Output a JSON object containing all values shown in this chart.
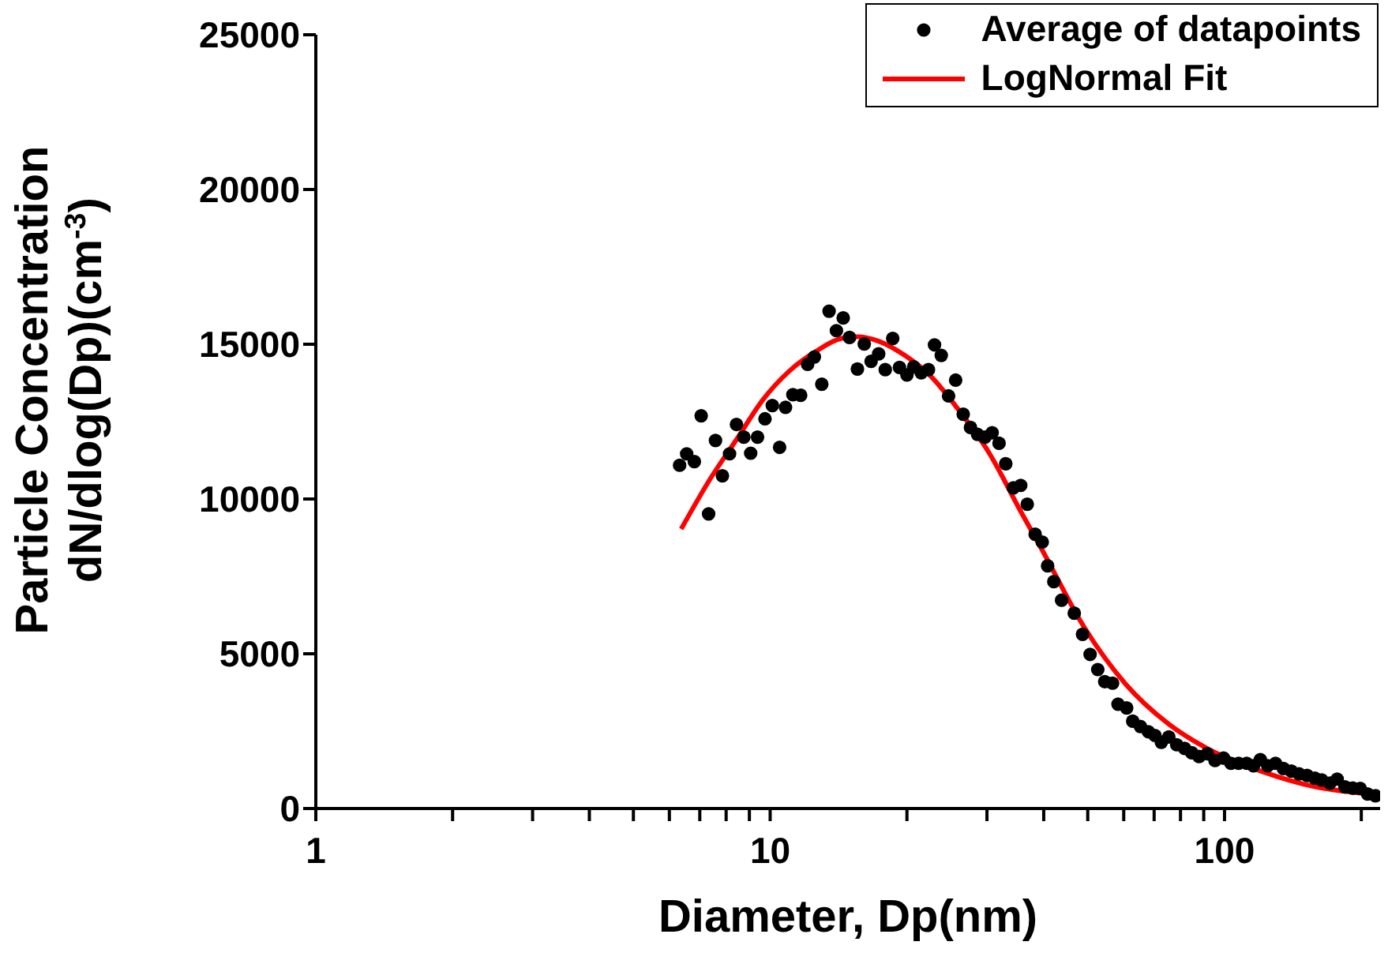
{
  "chart_data": {
    "type": "scatter",
    "xlabel": "Diameter, Dp(nm)",
    "ylabel": "Particle Concentration\ndN/dlog(Dp)(cm$^{-3}$)",
    "log": "x",
    "xlim": [
      1,
      220
    ],
    "xticks": [
      1,
      {
        "value": 2,
        "label": null
      },
      {
        "value": 3,
        "label": null
      },
      {
        "value": 4,
        "label": null
      },
      {
        "value": 5,
        "label": null
      },
      {
        "value": 6,
        "label": null
      },
      {
        "value": 7,
        "label": null
      },
      {
        "value": 8,
        "label": null
      },
      {
        "value": 9,
        "label": null
      },
      10,
      {
        "value": 20,
        "label": null
      },
      {
        "value": 30,
        "label": null
      },
      {
        "value": 40,
        "label": null
      },
      {
        "value": 50,
        "label": null
      },
      {
        "value": 60,
        "label": null
      },
      {
        "value": 70,
        "label": null
      },
      {
        "value": 80,
        "label": null
      },
      {
        "value": 90,
        "label": null
      },
      100,
      {
        "value": 200,
        "label": null
      }
    ],
    "ylim": [
      0,
      25000
    ],
    "yticks": [
      0,
      5000,
      10000,
      15000,
      20000,
      25000
    ],
    "grid": false,
    "legend": "top right",
    "marker": "circle",
    "series": [
      {
        "name": "Average of datapoints",
        "color": "#000000",
        "x": [
          6.32,
          6.55,
          6.81,
          7.05,
          7.32,
          7.58,
          7.85,
          8.14,
          8.43,
          8.75,
          9.06,
          9.38,
          9.74,
          10.11,
          10.49,
          10.81,
          11.22,
          11.67,
          12.09,
          12.51,
          12.99,
          13.48,
          13.99,
          14.48,
          14.95,
          15.56,
          16.11,
          16.68,
          17.33,
          17.92,
          18.61,
          19.26,
          20.0,
          20.7,
          21.5,
          22.3,
          23.0,
          23.8,
          24.7,
          25.6,
          26.6,
          27.6,
          28.6,
          29.7,
          30.8,
          31.9,
          33.0,
          34.3,
          35.6,
          36.8,
          38.3,
          39.7,
          40.8,
          42.1,
          43.8,
          46.7,
          48.7,
          50.6,
          52.6,
          54.5,
          56.7,
          58.3,
          60.9,
          62.8,
          65.3,
          68.0,
          70.3,
          72.6,
          75.4,
          78.5,
          81.7,
          84.7,
          87.9,
          91.6,
          95.3,
          99.5,
          103.3,
          107.4,
          111.9,
          115.8,
          119.9,
          124.5,
          129.5,
          134.8,
          140.3,
          145.9,
          152.0,
          158.1,
          163.7,
          170.6,
          177.0,
          184.1,
          191.5,
          198.9,
          206.5,
          214.9
        ],
        "values": [
          11090,
          11460,
          11210,
          12690,
          9520,
          11890,
          10750,
          11460,
          12410,
          12000,
          11480,
          12000,
          12590,
          13020,
          11670,
          12960,
          13370,
          13350,
          14350,
          14590,
          13710,
          16070,
          15440,
          15850,
          15220,
          14200,
          15010,
          14450,
          14690,
          14180,
          15190,
          14250,
          14010,
          14270,
          14080,
          14180,
          14980,
          14640,
          13330,
          13840,
          12740,
          12310,
          12090,
          12000,
          12140,
          11800,
          11140,
          10360,
          10440,
          9830,
          8860,
          8610,
          7840,
          7330,
          6730,
          6310,
          5630,
          4980,
          4490,
          4100,
          4050,
          3370,
          3250,
          2820,
          2650,
          2480,
          2360,
          2140,
          2310,
          2060,
          1940,
          1800,
          1680,
          1770,
          1550,
          1630,
          1460,
          1460,
          1460,
          1380,
          1580,
          1380,
          1460,
          1290,
          1210,
          1120,
          1070,
          980,
          920,
          820,
          950,
          700,
          660,
          650,
          470,
          410
        ]
      },
      {
        "name": "LogNormal Fit",
        "type": "line",
        "color": "#ff0000",
        "marker": "none",
        "line_style": "solid",
        "x": [
          6.37,
          7.38,
          8.43,
          9.63,
          11.01,
          12.58,
          14.36,
          15.56,
          17.32,
          19.78,
          22.6,
          25.8,
          30.3,
          35.6,
          39.7,
          49.0,
          60.6,
          75.2,
          93.0,
          120.2,
          158.6,
          208.5
        ],
        "values": [
          9030,
          10650,
          11920,
          13200,
          14130,
          14760,
          15190,
          15240,
          15100,
          14640,
          13960,
          12940,
          11500,
          9600,
          8350,
          5880,
          4020,
          2740,
          1890,
          1210,
          700,
          470
        ]
      }
    ]
  }
}
